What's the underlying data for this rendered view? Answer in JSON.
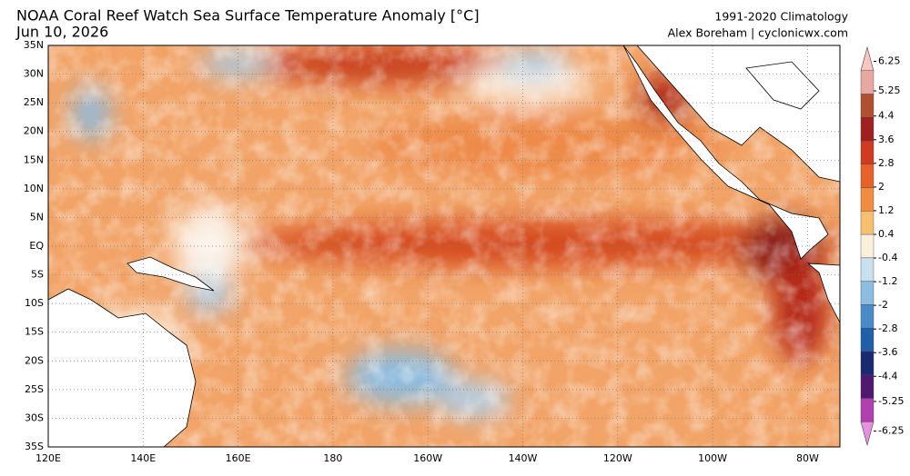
{
  "header": {
    "title": "NOAA Coral Reef Watch Sea Surface Temperature Anomaly [°C]",
    "date": "Jun 10, 2026",
    "climatology": "1991-2020 Climatology",
    "credit": "Alex Boreham | cyclonicwx.com"
  },
  "map": {
    "lat_labels": [
      "35N",
      "30N",
      "25N",
      "20N",
      "15N",
      "10N",
      "5N",
      "EQ",
      "5S",
      "10S",
      "15S",
      "20S",
      "25S",
      "30S",
      "35S"
    ],
    "lon_labels": [
      "120E",
      "140E",
      "160E",
      "180",
      "160W",
      "140W",
      "120W",
      "100W",
      "80W"
    ]
  },
  "colorbar": {
    "ticks": [
      6.25,
      5.25,
      4.4,
      3.6,
      2.8,
      2,
      1.2,
      0.4,
      -0.4,
      -1.2,
      -2,
      -2.8,
      -3.6,
      -4.4,
      -5.25,
      -6.25
    ],
    "colors": [
      "#f7c6c0",
      "#e8a8a0",
      "#b05030",
      "#a02020",
      "#d03a20",
      "#e8602a",
      "#f28c40",
      "#f7c070",
      "#fbf0dc",
      "#c8e0f0",
      "#8cbce0",
      "#4a8cc8",
      "#2060a8",
      "#1a2a70",
      "#501870",
      "#b040b0",
      "#e890e0"
    ]
  }
}
